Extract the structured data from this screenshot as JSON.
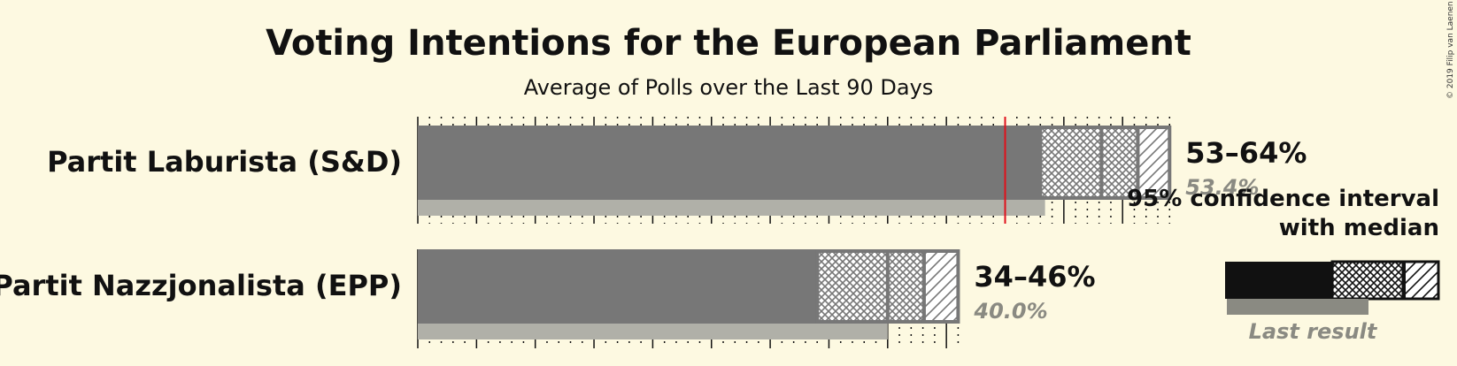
{
  "chart_data": {
    "type": "bar",
    "title": "Voting Intentions for the European Parliament",
    "subtitle": "Average of Polls over the Last 90 Days",
    "threshold": 50,
    "x_range": [
      0,
      66
    ],
    "series": [
      {
        "party": "Partit Laburista (S&D)",
        "ci_low": 53,
        "ci_high": 64,
        "ci80_low": 55.5,
        "ci80_high": 61.3,
        "median": 58.2,
        "last_result": 53.4,
        "range_label": "53–64%",
        "last_label": "53.4%"
      },
      {
        "party": "Partit Nazzjonalista (EPP)",
        "ci_low": 34,
        "ci_high": 46,
        "ci80_low": 36.5,
        "ci80_high": 43.1,
        "median": 40.0,
        "last_result": 40.0,
        "range_label": "34–46%",
        "last_label": "40.0%"
      }
    ],
    "legend": {
      "line1": "95% confidence interval",
      "line2": "with median",
      "last_result": "Last result"
    },
    "colors": {
      "bar": "#777777",
      "last_result": "#b0b0a8",
      "threshold": "#e0101a",
      "background": "#fdf9e1",
      "legend_bar": "#111111"
    }
  },
  "copyright": "© 2019 Filip van Laenen"
}
